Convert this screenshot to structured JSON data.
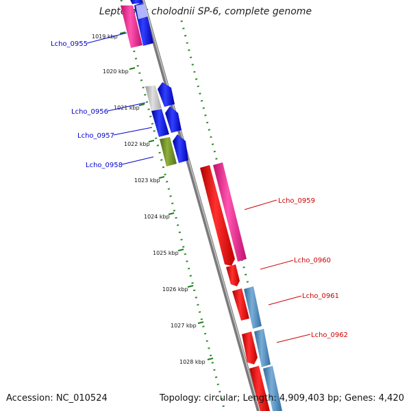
{
  "title": "Leptothrix cholodnii SP-6, complete genome",
  "footer": {
    "accession": "Accession: NC_010524",
    "stats": "Topology: circular; Length: 4,909,403 bp; Genes: 4,420"
  },
  "kbp_labels": [
    "1019 kbp",
    "1020 kbp",
    "1021 kbp",
    "1022 kbp",
    "1023 kbp",
    "1024 kbp",
    "1025 kbp",
    "1026 kbp",
    "1027 kbp",
    "1028 kbp"
  ],
  "gene_labels": [
    {
      "name": "Lcho_0955",
      "color": "#0000cc"
    },
    {
      "name": "Lcho_0956",
      "color": "#0000cc"
    },
    {
      "name": "Lcho_0957",
      "color": "#0000cc"
    },
    {
      "name": "Lcho_0958",
      "color": "#0000cc"
    },
    {
      "name": "Lcho_0959",
      "color": "#cc0000"
    },
    {
      "name": "Lcho_0960",
      "color": "#cc0000"
    },
    {
      "name": "Lcho_0961",
      "color": "#cc0000"
    },
    {
      "name": "Lcho_0962",
      "color": "#cc0000"
    }
  ],
  "colors": {
    "backbone": "#8a8a8a",
    "tick_green": "#2e8b2e",
    "blue_feature": "#0000ee",
    "red_feature": "#ee0000",
    "magenta_feature": "#e8298f",
    "steelblue_feature": "#4a86c0",
    "olive_feature": "#6b8e23",
    "grey_feature": "#c0c0c0"
  }
}
